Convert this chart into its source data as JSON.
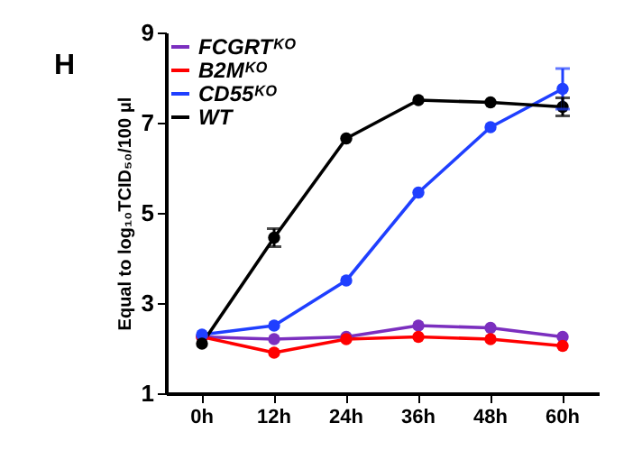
{
  "chart_data": {
    "type": "line",
    "ylabel": "Equal to log₁₀TCID₅₀/100 μl",
    "annotations": [
      "H"
    ],
    "categories": [
      "0h",
      "12h",
      "24h",
      "36h",
      "48h",
      "60h"
    ],
    "series": [
      {
        "name": "FCGRTᴷᴼ",
        "color": "#7b2fbf",
        "values": [
          2.25,
          2.2,
          2.25,
          2.5,
          2.45,
          2.25
        ]
      },
      {
        "name": "B2Mᴷᴼ",
        "color": "#ff0000",
        "values": [
          2.25,
          1.9,
          2.2,
          2.25,
          2.2,
          2.05
        ]
      },
      {
        "name": "CD55ᴷᴼ",
        "color": "#1f3fff",
        "values": [
          2.3,
          2.5,
          3.5,
          5.45,
          6.9,
          7.75
        ],
        "errors": [
          null,
          null,
          null,
          null,
          null,
          0.45
        ]
      },
      {
        "name": "WT",
        "color": "#000000",
        "values": [
          2.1,
          4.45,
          6.65,
          7.5,
          7.45,
          7.35
        ],
        "errors": [
          null,
          0.2,
          null,
          null,
          null,
          0.2
        ]
      }
    ],
    "ylim": [
      1,
      9
    ],
    "yticks": [
      1,
      3,
      5,
      7,
      9
    ],
    "grid": false,
    "legend": "top left",
    "marker": "circle",
    "line_style": "solid"
  }
}
